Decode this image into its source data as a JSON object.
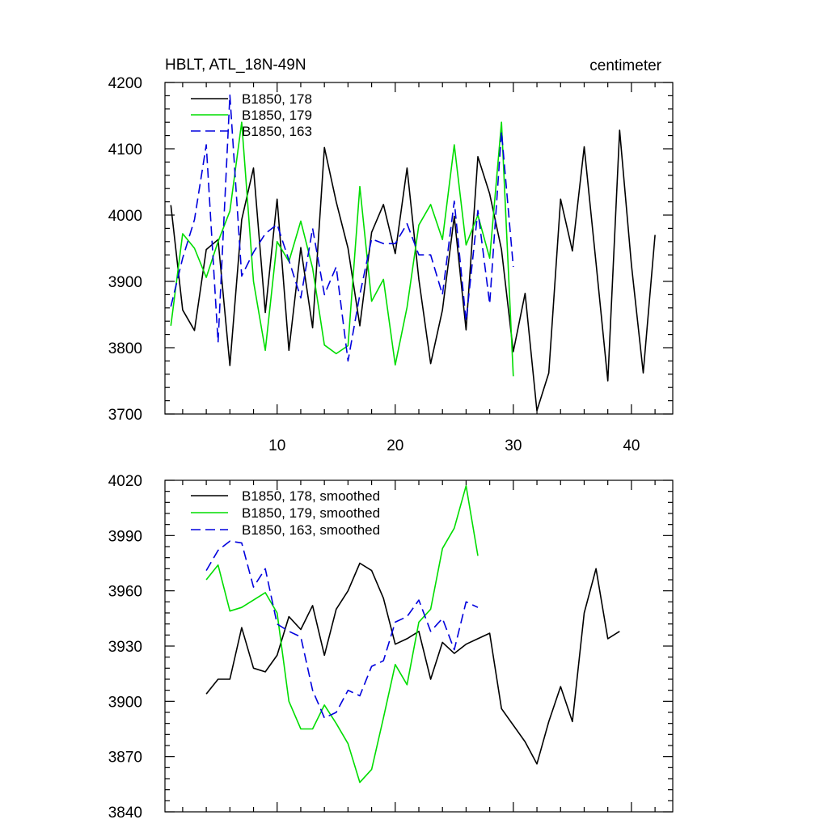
{
  "colors": {
    "black": "#000000",
    "green": "#00dd00",
    "blue": "#0000dd"
  },
  "chart_data": [
    {
      "type": "line",
      "title": "HBLT, ATL_18N-49N",
      "units": "centimeter",
      "xlim": [
        0.5,
        43.5
      ],
      "ylim": [
        3700,
        4200
      ],
      "xticks": [
        10,
        20,
        30,
        40
      ],
      "yticks": [
        3700,
        3800,
        3900,
        4000,
        4100,
        4200
      ],
      "series": [
        {
          "name": "B1850, 178",
          "color": "#000000",
          "dash": false,
          "x": [
            1,
            2,
            3,
            4,
            5,
            6,
            7,
            8,
            9,
            10,
            11,
            12,
            13,
            14,
            15,
            16,
            17,
            18,
            19,
            20,
            21,
            22,
            23,
            24,
            25,
            26,
            27,
            28,
            29,
            30,
            31,
            32,
            33,
            34,
            35,
            36,
            37,
            38,
            39,
            40,
            41,
            42
          ],
          "y": [
            4015,
            3857,
            3826,
            3948,
            3963,
            3773,
            3993,
            4071,
            3853,
            4024,
            3796,
            3951,
            3830,
            4102,
            4020,
            3950,
            3833,
            3974,
            4016,
            3942,
            4071,
            3903,
            3776,
            3857,
            3998,
            3827,
            4088,
            4032,
            3948,
            3794,
            3882,
            3705,
            3762,
            4024,
            3946,
            4103,
            3928,
            3750,
            4128,
            3925,
            3762,
            3970
          ]
        },
        {
          "name": "B1850, 179",
          "color": "#00dd00",
          "dash": false,
          "x": [
            1,
            2,
            3,
            4,
            5,
            6,
            7,
            8,
            9,
            10,
            11,
            12,
            13,
            14,
            15,
            16,
            17,
            18,
            19,
            20,
            21,
            22,
            23,
            24,
            25,
            26,
            27,
            28,
            29,
            30
          ],
          "y": [
            3833,
            3972,
            3950,
            3906,
            3960,
            4006,
            4140,
            3900,
            3796,
            3960,
            3930,
            3991,
            3920,
            3804,
            3791,
            3803,
            4043,
            3870,
            3903,
            3774,
            3861,
            3985,
            4016,
            3963,
            4106,
            3955,
            4000,
            3935,
            4140,
            3757
          ]
        },
        {
          "name": "B1850, 163",
          "color": "#0000dd",
          "dash": true,
          "x": [
            1,
            2,
            3,
            4,
            5,
            6,
            7,
            8,
            9,
            10,
            11,
            12,
            13,
            14,
            15,
            16,
            17,
            18,
            19,
            20,
            21,
            22,
            23,
            24,
            25,
            26,
            27,
            28,
            29,
            30
          ],
          "y": [
            3862,
            3935,
            3993,
            4106,
            3808,
            4181,
            3908,
            3944,
            3972,
            3986,
            3932,
            3875,
            3980,
            3880,
            3922,
            3780,
            3880,
            3964,
            3957,
            3957,
            3987,
            3940,
            3940,
            3880,
            4021,
            3840,
            4007,
            3866,
            4126,
            3922
          ]
        }
      ]
    },
    {
      "type": "line",
      "title": "",
      "xlim": [
        0.5,
        43.5
      ],
      "ylim": [
        3840,
        4020
      ],
      "xticks": [
        10,
        20,
        30,
        40
      ],
      "yticks": [
        3840,
        3870,
        3900,
        3930,
        3960,
        3990,
        4020
      ],
      "series": [
        {
          "name": "B1850, 178, smoothed",
          "color": "#000000",
          "dash": false,
          "x": [
            4,
            5,
            6,
            7,
            8,
            9,
            10,
            11,
            12,
            13,
            14,
            15,
            16,
            17,
            18,
            19,
            20,
            21,
            22,
            23,
            24,
            25,
            26,
            27,
            28,
            29,
            30,
            31,
            32,
            33,
            34,
            35,
            36,
            37,
            38,
            39
          ],
          "y": [
            3904,
            3912,
            3912,
            3940,
            3918,
            3916,
            3925,
            3946,
            3939,
            3952,
            3925,
            3950,
            3960,
            3975,
            3971,
            3956,
            3931,
            3934,
            3938,
            3912,
            3932,
            3926,
            3931,
            3934,
            3937,
            3896,
            3887,
            3878,
            3866,
            3889,
            3908,
            3889,
            3948,
            3972,
            3934,
            3938
          ]
        },
        {
          "name": "B1850, 179, smoothed",
          "color": "#00dd00",
          "dash": false,
          "x": [
            4,
            5,
            6,
            7,
            8,
            9,
            10,
            11,
            12,
            13,
            14,
            15,
            16,
            17,
            18,
            19,
            20,
            21,
            22,
            23,
            24,
            25,
            26,
            27
          ],
          "y": [
            3966,
            3974,
            3949,
            3951,
            3955,
            3959,
            3948,
            3900,
            3885,
            3885,
            3898,
            3888,
            3877,
            3856,
            3863,
            3891,
            3920,
            3909,
            3943,
            3950,
            3983,
            3994,
            4017,
            3979
          ]
        },
        {
          "name": "B1850, 163, smoothed",
          "color": "#0000dd",
          "dash": true,
          "x": [
            4,
            5,
            6,
            7,
            8,
            9,
            10,
            11,
            12,
            13,
            14,
            15,
            16,
            17,
            18,
            19,
            20,
            21,
            22,
            23,
            24,
            25,
            26,
            27
          ],
          "y": [
            3971,
            3982,
            3987,
            3986,
            3962,
            3972,
            3942,
            3938,
            3935,
            3906,
            3891,
            3894,
            3906,
            3903,
            3919,
            3922,
            3943,
            3946,
            3955,
            3938,
            3945,
            3928,
            3954,
            3951
          ]
        }
      ]
    }
  ]
}
